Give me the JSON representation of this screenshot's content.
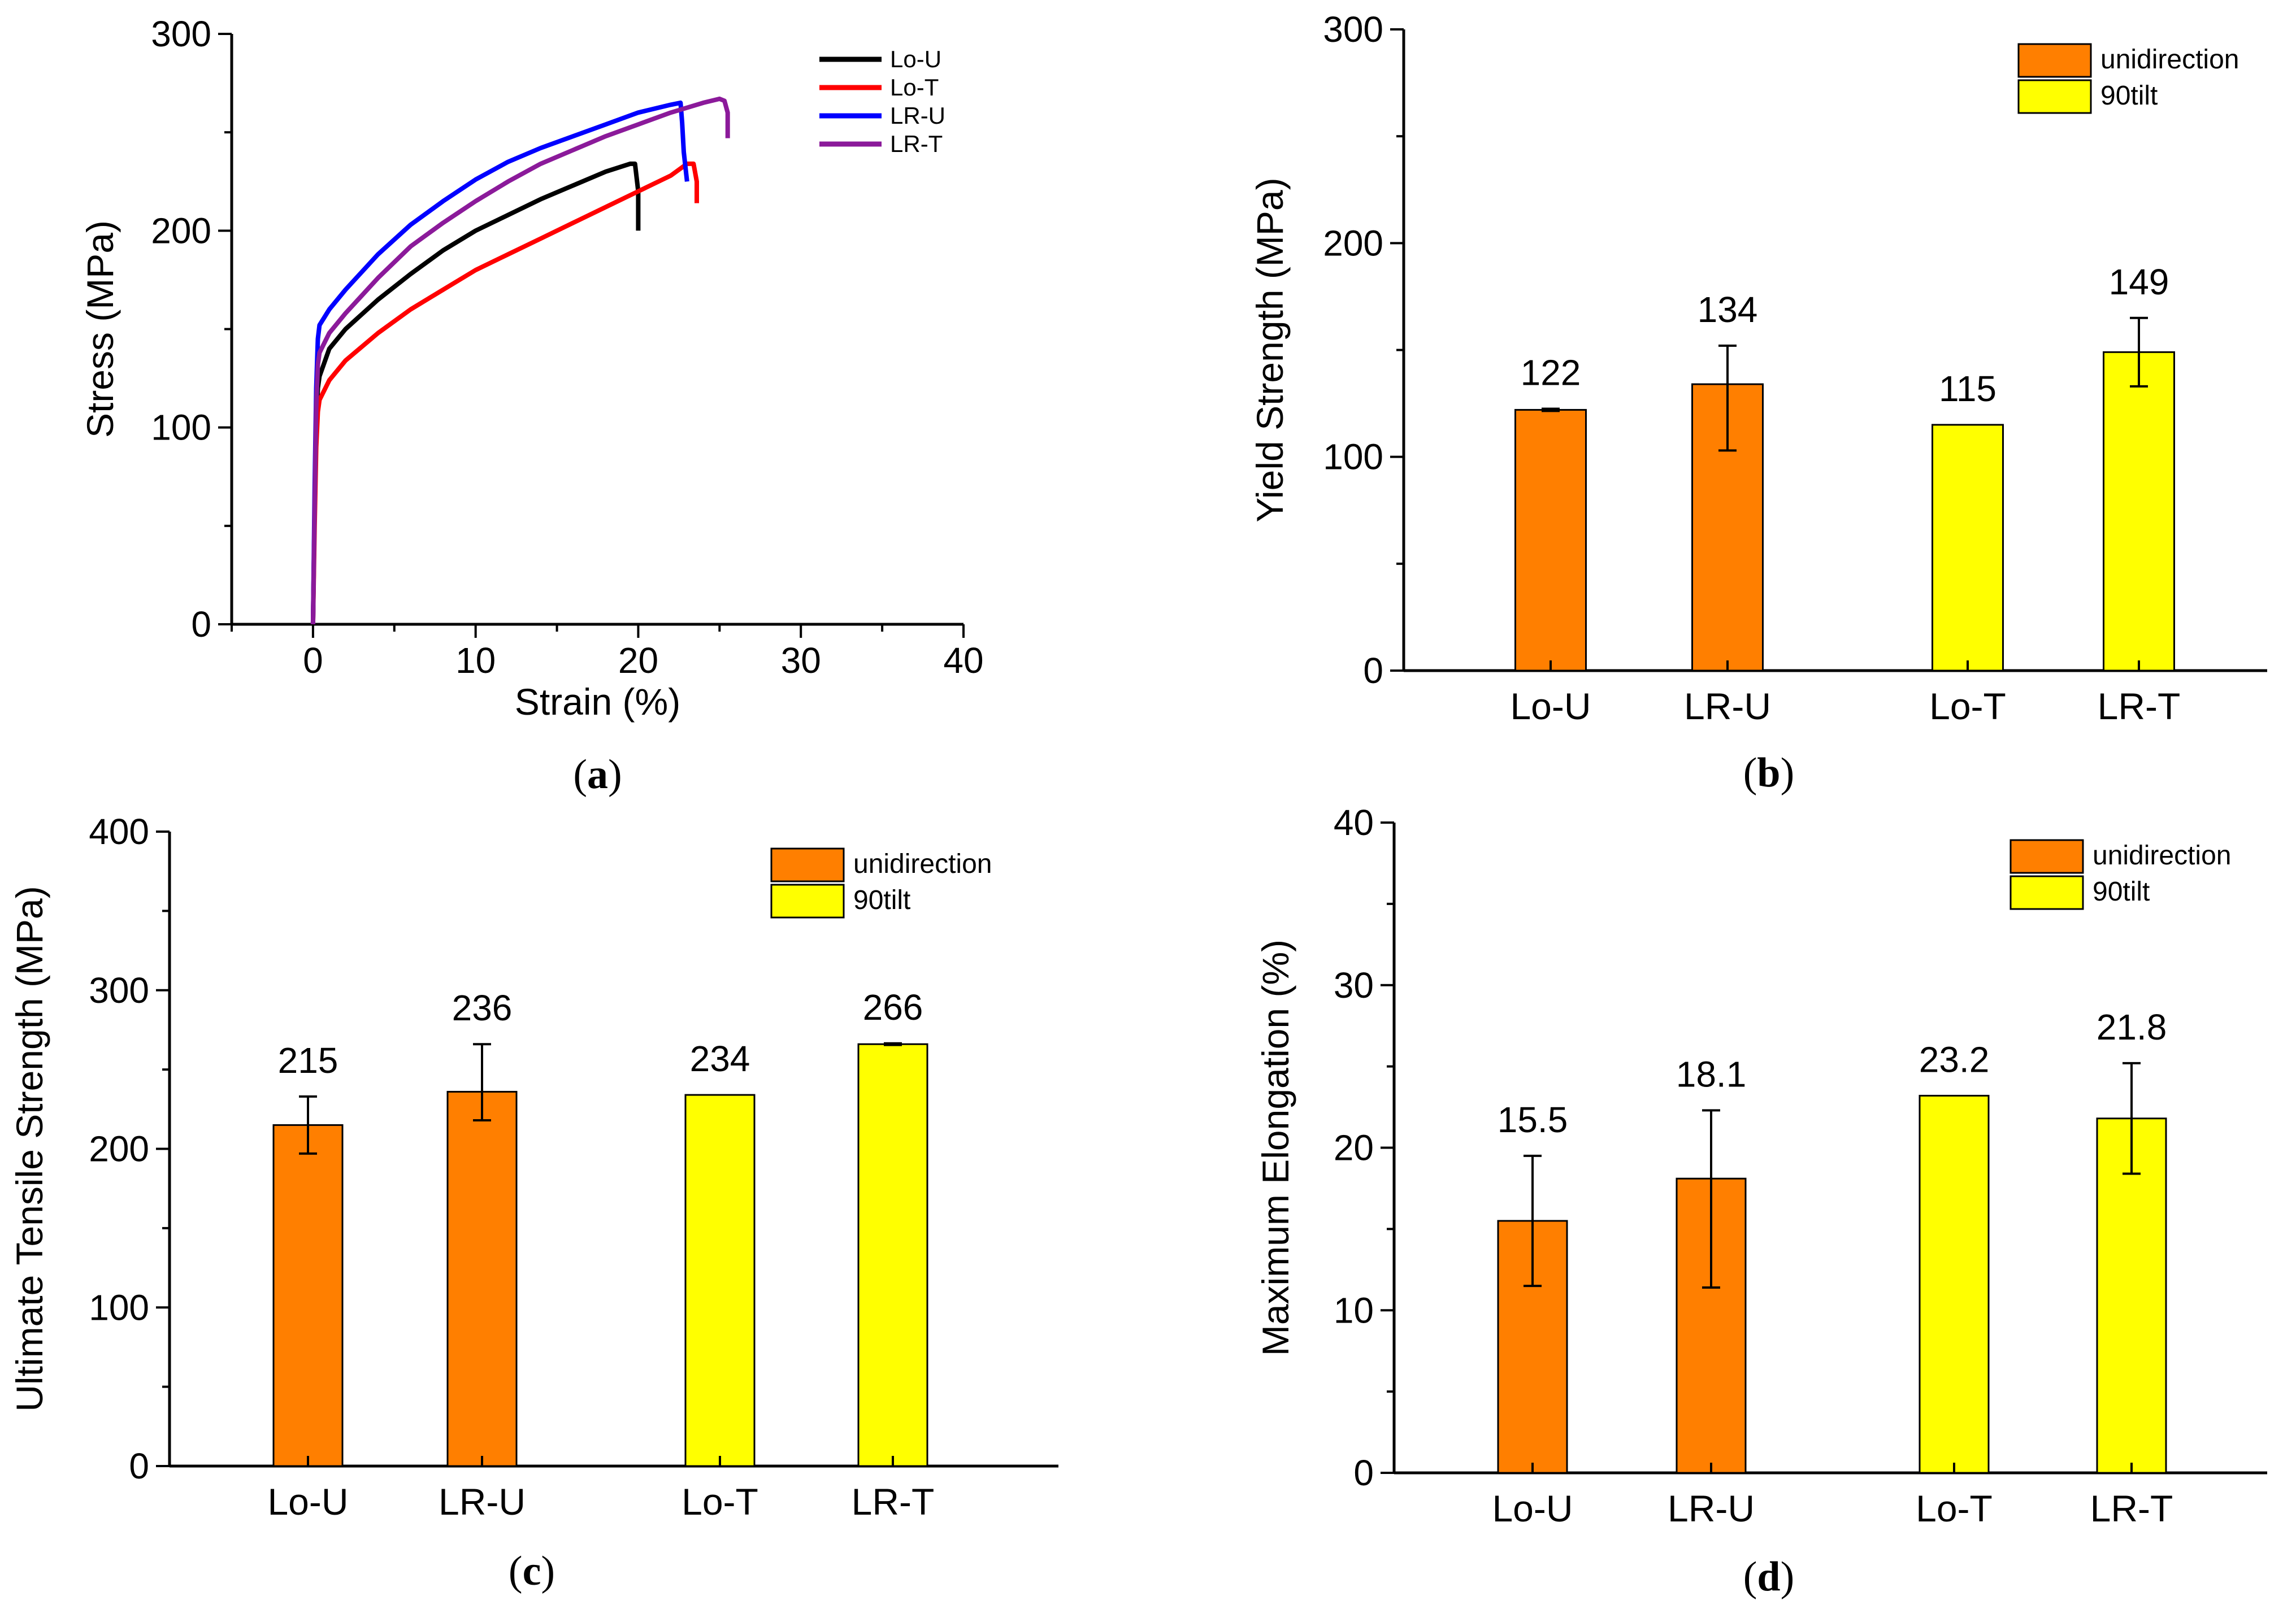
{
  "chart_data": [
    {
      "id": "a",
      "type": "line",
      "caption": "a",
      "xlabel": "Strain (%)",
      "ylabel": "Stress (MPa)",
      "xlim": [
        -5,
        40
      ],
      "ylim": [
        0,
        300
      ],
      "xticks": [
        0,
        10,
        20,
        30,
        40
      ],
      "yticks": [
        0,
        100,
        200,
        300
      ],
      "legend_position": "top-right",
      "series": [
        {
          "name": "Lo-U",
          "color": "#000000",
          "x": [
            0,
            0.1,
            0.2,
            0.3,
            0.4,
            1,
            2,
            4,
            6,
            8,
            10,
            12,
            14,
            16,
            18,
            19.5,
            19.8,
            20.0,
            20.0
          ],
          "y": [
            0,
            60,
            100,
            120,
            126,
            140,
            150,
            165,
            178,
            190,
            200,
            208,
            216,
            223,
            230,
            234,
            234,
            220,
            200
          ]
        },
        {
          "name": "Lo-T",
          "color": "#ff0000",
          "x": [
            0,
            0.1,
            0.2,
            0.3,
            0.4,
            1,
            2,
            4,
            6,
            8,
            10,
            12,
            14,
            16,
            18,
            20,
            22,
            23.0,
            23.4,
            23.6,
            23.6
          ],
          "y": [
            0,
            50,
            90,
            108,
            114,
            124,
            134,
            148,
            160,
            170,
            180,
            188,
            196,
            204,
            212,
            220,
            228,
            234,
            234,
            225,
            214
          ]
        },
        {
          "name": "LR-U",
          "color": "#0000ff",
          "x": [
            0,
            0.1,
            0.2,
            0.3,
            0.4,
            1,
            2,
            4,
            6,
            8,
            10,
            12,
            14,
            16,
            18,
            20,
            22,
            22.6,
            22.7,
            22.8,
            23.0
          ],
          "y": [
            0,
            70,
            120,
            145,
            152,
            160,
            170,
            188,
            203,
            215,
            226,
            235,
            242,
            248,
            254,
            260,
            264,
            265,
            255,
            240,
            225
          ]
        },
        {
          "name": "LR-T",
          "color": "#8b1a9a",
          "x": [
            0,
            0.1,
            0.2,
            0.3,
            0.4,
            1,
            2,
            4,
            6,
            8,
            10,
            12,
            14,
            16,
            18,
            20,
            22,
            24,
            25.0,
            25.3,
            25.5,
            25.5
          ],
          "y": [
            0,
            60,
            110,
            132,
            138,
            148,
            158,
            176,
            192,
            204,
            215,
            225,
            234,
            241,
            248,
            254,
            260,
            265,
            267,
            266,
            260,
            247
          ]
        }
      ]
    },
    {
      "id": "b",
      "type": "bar",
      "caption": "b",
      "ylabel": "Yield Strength (MPa)",
      "ylim": [
        0,
        300
      ],
      "yticks": [
        0,
        100,
        200,
        300
      ],
      "categories": [
        "Lo-U",
        "LR-U",
        "Lo-T",
        "LR-T"
      ],
      "groups": [
        "unidirection",
        "unidirection",
        "90tilt",
        "90tilt"
      ],
      "values": [
        122,
        134,
        115,
        149
      ],
      "error_low": [
        0.5,
        31,
        0,
        16
      ],
      "error_high": [
        0.5,
        18,
        0,
        16
      ],
      "data_labels": [
        "122",
        "134",
        "115",
        "149"
      ],
      "legend_position": "top-right",
      "legend": [
        {
          "name": "unidirection",
          "color": "#ff7f00"
        },
        {
          "name": "90tilt",
          "color": "#ffff00"
        }
      ]
    },
    {
      "id": "c",
      "type": "bar",
      "caption": "c",
      "ylabel": "Ultimate Tensile Strength (MPa)",
      "ylim": [
        0,
        400
      ],
      "yticks": [
        0,
        100,
        200,
        300,
        400
      ],
      "categories": [
        "Lo-U",
        "LR-U",
        "Lo-T",
        "LR-T"
      ],
      "groups": [
        "unidirection",
        "unidirection",
        "90tilt",
        "90tilt"
      ],
      "values": [
        215,
        236,
        234,
        266
      ],
      "error_low": [
        18,
        18,
        0,
        0.5
      ],
      "error_high": [
        18,
        30,
        0,
        0.5
      ],
      "data_labels": [
        "215",
        "236",
        "234",
        "266"
      ],
      "legend_position": "top-right",
      "legend": [
        {
          "name": "unidirection",
          "color": "#ff7f00"
        },
        {
          "name": "90tilt",
          "color": "#ffff00"
        }
      ]
    },
    {
      "id": "d",
      "type": "bar",
      "caption": "d",
      "ylabel": "Maximum Elongation (%)",
      "ylim": [
        0,
        40
      ],
      "yticks": [
        0,
        10,
        20,
        30,
        40
      ],
      "categories": [
        "Lo-U",
        "LR-U",
        "Lo-T",
        "LR-T"
      ],
      "groups": [
        "unidirection",
        "unidirection",
        "90tilt",
        "90tilt"
      ],
      "values": [
        15.5,
        18.1,
        23.2,
        21.8
      ],
      "error_low": [
        4,
        6.7,
        0,
        3.4
      ],
      "error_high": [
        4,
        4.2,
        0,
        3.4
      ],
      "data_labels": [
        "15.5",
        "18.1",
        "23.2",
        "21.8"
      ],
      "legend_position": "top-right",
      "legend": [
        {
          "name": "unidirection",
          "color": "#ff7f00"
        },
        {
          "name": "90tilt",
          "color": "#ffff00"
        }
      ]
    }
  ]
}
